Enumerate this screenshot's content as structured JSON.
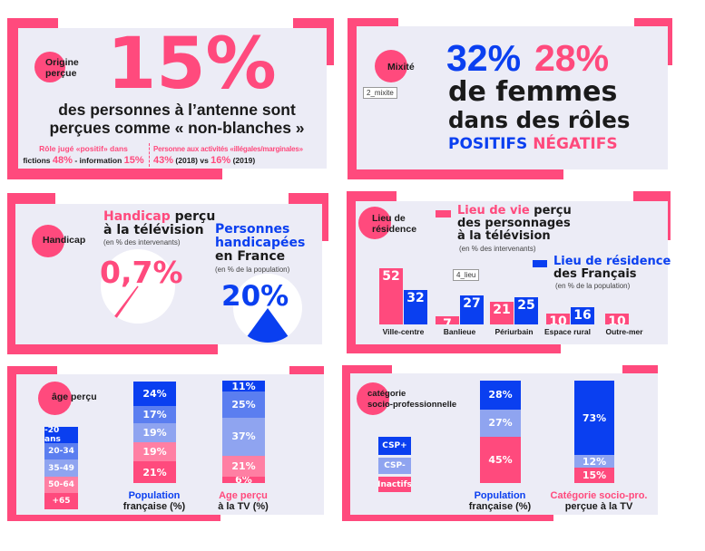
{
  "colors": {
    "pink": "#ff4a7d",
    "blue": "#0a3ff0",
    "mid_blue": "#5b7ef0",
    "light_blue": "#8fa4f0",
    "light_pink": "#ff7fa3",
    "panel_bg": "#ececf6"
  },
  "origine": {
    "tag": "Origine perçue",
    "big": "15%",
    "line1": "des personnes à l’antenne sont",
    "line2": "perçues comme « non-blanches »",
    "left_title": "Rôle jugé «positif» dans",
    "left_a": "fictions",
    "left_a_val": "48%",
    "left_sep": "- information",
    "left_b_val": "15%",
    "right_title": "Personne aux activités «illégales/marginales»",
    "right_a_val": "43%",
    "right_a_year": "(2018) vs",
    "right_b_val": "16%",
    "right_b_year": "(2019)"
  },
  "mixite": {
    "tag": "Mixité",
    "image_label": "2_mixite",
    "pos_val": "32%",
    "neg_val": "28%",
    "line1": "de femmes",
    "line2": "dans des rôles",
    "pos_label": "POSITIFS",
    "neg_label": "NÉGATIFS"
  },
  "handicap": {
    "tag": "Handicap",
    "tv_title_pink": "Handicap",
    "tv_title_rest": " perçu",
    "tv_title_2": "à la télévision",
    "tv_sub": "(en % des intervenants)",
    "tv_val": "0,7%",
    "tv_fraction": 0.007,
    "fr_title_1": "Personnes",
    "fr_title_2": "handicapées",
    "fr_title_3": "en France",
    "fr_sub": "(en % de la population)",
    "fr_val": "20%",
    "fr_fraction": 0.2
  },
  "lieu": {
    "tag_1": "Lieu de",
    "tag_2": "résidence",
    "image_label": "4_lieu",
    "legend_tv_pink": "Lieu de vie",
    "legend_tv_rest": " perçu",
    "legend_tv_2": "des personnages",
    "legend_tv_3": "à la télévision",
    "legend_tv_sub": "(en % des intervenants)",
    "legend_fr_1": "Lieu de résidence",
    "legend_fr_2": "des Français",
    "legend_fr_sub": "(en % de la population)",
    "categories": [
      "Ville-centre",
      "Banlieue",
      "Périurbain",
      "Espace rural",
      "Outre-mer"
    ],
    "tv": [
      52,
      7,
      21,
      10,
      10
    ],
    "fr": [
      32,
      27,
      25,
      16,
      null
    ]
  },
  "age": {
    "tag": "âge perçu",
    "legend": [
      "-20 ans",
      "20-34",
      "35-49",
      "50-64",
      "+65"
    ],
    "population": [
      24,
      17,
      19,
      19,
      21
    ],
    "tv": [
      11,
      25,
      37,
      21,
      6
    ],
    "pop_cap_1": "Population",
    "pop_cap_2": "française (%)",
    "tv_cap_1": "Age perçu",
    "tv_cap_2": "à la TV (%)"
  },
  "csp": {
    "tag_1": "catégorie",
    "tag_2": "socio-professionnelle",
    "legend": [
      "CSP+",
      "CSP-",
      "Inactifs"
    ],
    "population": [
      28,
      27,
      45
    ],
    "tv": [
      73,
      12,
      15
    ],
    "pop_cap_1": "Population",
    "pop_cap_2": "française (%)",
    "tv_cap_1": "Catégorie socio-pro.",
    "tv_cap_2": "perçue à la TV"
  }
}
